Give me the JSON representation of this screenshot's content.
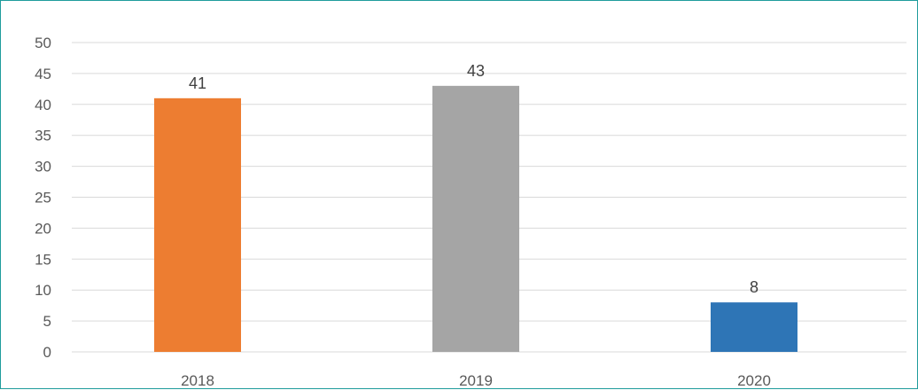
{
  "chart_data": {
    "type": "bar",
    "categories": [
      "2018",
      "2019",
      "2020"
    ],
    "values": [
      41,
      43,
      8
    ],
    "data_labels": [
      "41",
      "43",
      "8"
    ],
    "colors": [
      "#ed7d31",
      "#a5a5a5",
      "#2e75b6"
    ],
    "ylim": [
      0,
      50
    ],
    "yticks": [
      "0",
      "5",
      "10",
      "15",
      "20",
      "25",
      "30",
      "35",
      "40",
      "45",
      "50"
    ],
    "grid": true,
    "gridline_color": "#d9d9d9",
    "legend": "none"
  }
}
